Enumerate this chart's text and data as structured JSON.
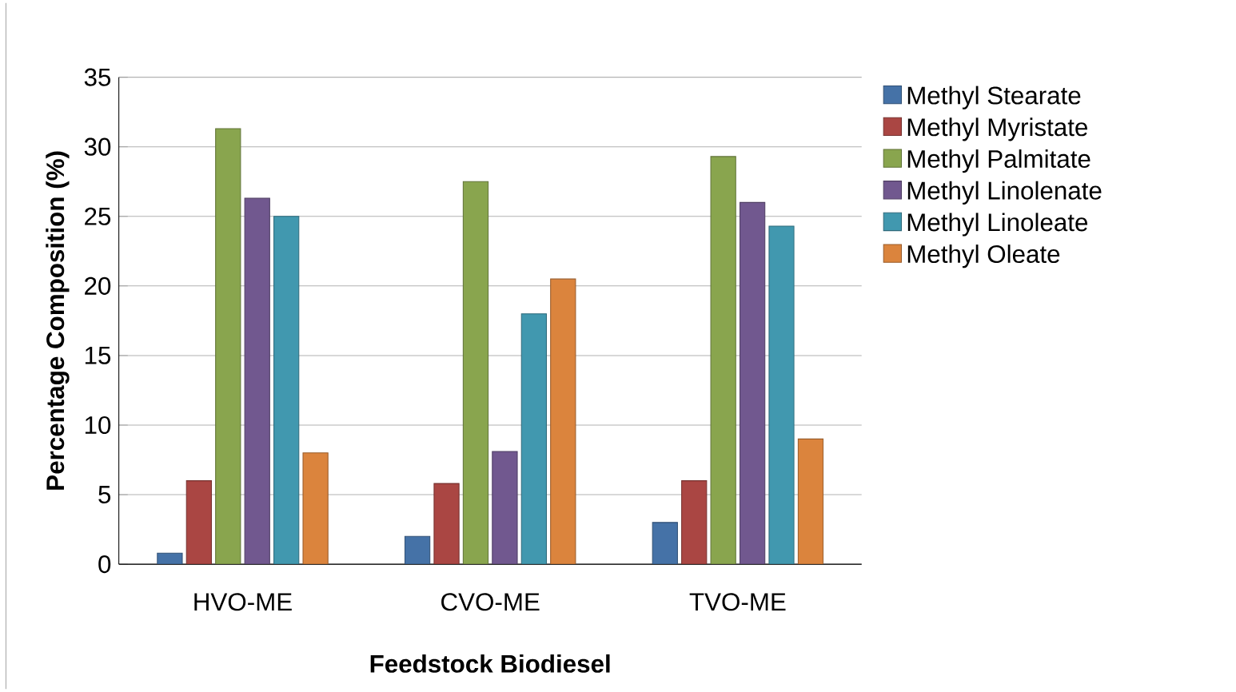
{
  "chart_data": {
    "type": "bar",
    "xlabel": "Feedstock Biodiesel",
    "ylabel": "Percentage Composition (%)",
    "categories": [
      "HVO-ME",
      "CVO-ME",
      "TVO-ME"
    ],
    "series": [
      {
        "name": "Methyl Stearate",
        "color": "#4572a7",
        "values": [
          0.8,
          2,
          3
        ]
      },
      {
        "name": "Methyl  Myristate",
        "color": "#aa4643",
        "values": [
          6,
          5.8,
          6
        ]
      },
      {
        "name": "Methyl Palmitate",
        "color": "#89a54e",
        "values": [
          31.3,
          27.5,
          29.3
        ]
      },
      {
        "name": "Methyl Linolenate",
        "color": "#71588f",
        "values": [
          26.3,
          8.1,
          26
        ]
      },
      {
        "name": "Methyl  Linoleate",
        "color": "#4198af",
        "values": [
          25,
          18,
          24.3
        ]
      },
      {
        "name": "Methyl  Oleate",
        "color": "#db843d",
        "values": [
          8,
          20.5,
          9
        ]
      }
    ],
    "ylim": [
      0,
      35
    ],
    "yticks": [
      0,
      5,
      10,
      15,
      20,
      25,
      30,
      35
    ],
    "grid": "y",
    "legend": "top right"
  }
}
